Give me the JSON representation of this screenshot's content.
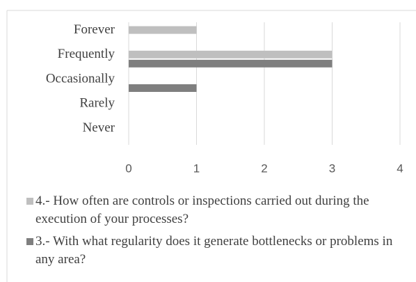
{
  "chart_data": {
    "type": "hbar",
    "categories": [
      "Forever",
      "Frequently",
      "Occasionally",
      "Rarely",
      "Never"
    ],
    "series": [
      {
        "name": "4.- How often are controls or inspections carried out during the execution of your processes?",
        "color": "#bfbfbf",
        "values": [
          1,
          3,
          0,
          0,
          0
        ]
      },
      {
        "name": "3.- With what regularity does it generate bottlenecks or problems in any area?",
        "color": "#7f7f7f",
        "values": [
          0,
          3,
          1,
          0,
          0
        ]
      }
    ],
    "xlim": [
      0,
      4
    ],
    "xticks": [
      0,
      1,
      2,
      3,
      4
    ],
    "grid": true
  }
}
